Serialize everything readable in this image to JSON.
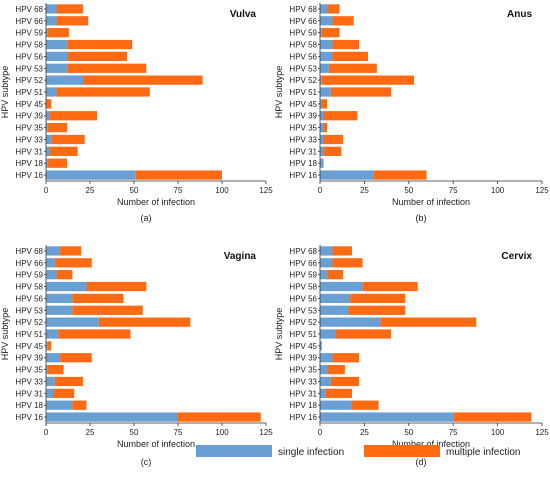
{
  "legend": {
    "single_label": "single infection",
    "multiple_label": "multiple infection"
  },
  "colors": {
    "single": "#6a9fd4",
    "multiple": "#ff6a13",
    "axis": "#333333"
  },
  "chart_data": [
    {
      "type": "bar",
      "orientation": "horizontal",
      "stacked": true,
      "title": "Vulva",
      "panel_label": "(a)",
      "xlabel": "Number of infection",
      "ylabel": "HPV subtype",
      "xlim": [
        0,
        125
      ],
      "xticks": [
        0,
        25,
        50,
        75,
        100,
        125
      ],
      "categories": [
        "HPV 68",
        "HPV 66",
        "HPV 59",
        "HPV 58",
        "HPV 56",
        "HPV 53",
        "HPV 52",
        "HPV 51",
        "HPV 45",
        "HPV 39",
        "HPV 35",
        "HPV 33",
        "HPV 31",
        "HPV 18",
        "HPV 16"
      ],
      "series": [
        {
          "name": "single infection",
          "values": [
            6,
            6,
            1,
            12,
            12,
            12,
            21,
            6,
            0,
            2,
            1,
            3,
            2,
            1,
            51
          ]
        },
        {
          "name": "multiple infection",
          "values": [
            15,
            18,
            12,
            37,
            34,
            45,
            68,
            53,
            3,
            27,
            11,
            19,
            16,
            11,
            49
          ]
        }
      ]
    },
    {
      "type": "bar",
      "orientation": "horizontal",
      "stacked": true,
      "title": "Anus",
      "panel_label": "(b)",
      "xlabel": "Number of infection",
      "ylabel": "HPV subtype",
      "xlim": [
        0,
        125
      ],
      "xticks": [
        0,
        25,
        50,
        75,
        100,
        125
      ],
      "categories": [
        "HPV 68",
        "HPV 66",
        "HPV 59",
        "HPV 58",
        "HPV 56",
        "HPV 53",
        "HPV 52",
        "HPV 51",
        "HPV 45",
        "HPV 39",
        "HPV 35",
        "HPV 33",
        "HPV 31",
        "HPV 18",
        "HPV 16"
      ],
      "series": [
        {
          "name": "single infection",
          "values": [
            4,
            7,
            1,
            7,
            7,
            5,
            1,
            6,
            1,
            2,
            2,
            2,
            2,
            2,
            30
          ]
        },
        {
          "name": "multiple infection",
          "values": [
            7,
            12,
            10,
            15,
            20,
            27,
            52,
            34,
            3,
            19,
            2,
            11,
            10,
            0,
            30
          ]
        }
      ]
    },
    {
      "type": "bar",
      "orientation": "horizontal",
      "stacked": true,
      "title": "Vagina",
      "panel_label": "(c)",
      "xlabel": "Number of infection",
      "ylabel": "HPV subtype",
      "xlim": [
        0,
        125
      ],
      "xticks": [
        0,
        25,
        50,
        75,
        100,
        125
      ],
      "categories": [
        "HPV 68",
        "HPV 66",
        "HPV 59",
        "HPV 58",
        "HPV 56",
        "HPV 53",
        "HPV 52",
        "HPV 51",
        "HPV 45",
        "HPV 39",
        "HPV 35",
        "HPV 33",
        "HPV 31",
        "HPV 18",
        "HPV 16"
      ],
      "series": [
        {
          "name": "single infection",
          "values": [
            8,
            5,
            6,
            23,
            15,
            15,
            30,
            7,
            1,
            8,
            1,
            5,
            4,
            15,
            75
          ]
        },
        {
          "name": "multiple infection",
          "values": [
            12,
            21,
            9,
            34,
            29,
            40,
            52,
            41,
            2,
            18,
            9,
            16,
            12,
            8,
            47
          ]
        }
      ]
    },
    {
      "type": "bar",
      "orientation": "horizontal",
      "stacked": true,
      "title": "Cervix",
      "panel_label": "(d)",
      "xlabel": "Number of infection",
      "ylabel": "HPV subtype",
      "xlim": [
        0,
        125
      ],
      "xticks": [
        0,
        25,
        50,
        75,
        100,
        125
      ],
      "categories": [
        "HPV 68",
        "HPV 66",
        "HPV 59",
        "HPV 58",
        "HPV 56",
        "HPV 53",
        "HPV 52",
        "HPV 51",
        "HPV 45",
        "HPV 39",
        "HPV 35",
        "HPV 33",
        "HPV 31",
        "HPV 18",
        "HPV 16"
      ],
      "series": [
        {
          "name": "single infection",
          "values": [
            7,
            7,
            4,
            24,
            17,
            16,
            34,
            9,
            1,
            7,
            4,
            6,
            3,
            18,
            75
          ]
        },
        {
          "name": "multiple infection",
          "values": [
            11,
            17,
            9,
            31,
            31,
            32,
            54,
            31,
            0,
            15,
            10,
            16,
            15,
            15,
            44
          ]
        }
      ]
    }
  ]
}
